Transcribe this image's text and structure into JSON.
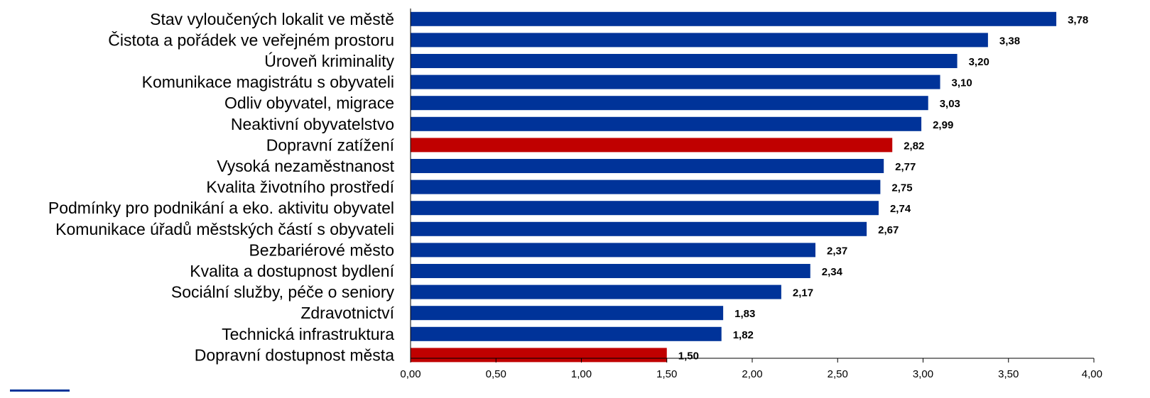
{
  "chart_data": {
    "type": "bar",
    "orientation": "horizontal",
    "title": "",
    "xlabel": "",
    "ylabel": "",
    "xlim": [
      0,
      4
    ],
    "x_ticks": [
      "0,00",
      "0,50",
      "1,00",
      "1,50",
      "2,00",
      "2,50",
      "3,00",
      "3,50",
      "4,00"
    ],
    "grid": false,
    "legend": "none",
    "colors": {
      "default": "#003399",
      "highlight": "#c00000"
    },
    "categories": [
      "Stav vyloučených lokalit ve městě",
      "Čistota a pořádek ve veřejném prostoru",
      "Úroveň kriminality",
      "Komunikace magistrátu s obyvateli",
      "Odliv obyvatel, migrace",
      "Neaktivní obyvatelstvo",
      "Dopravní zatížení",
      "Vysoká nezaměstnanost",
      "Kvalita životního prostředí",
      "Podmínky pro podnikání a eko. aktivitu obyvatel",
      "Komunikace úřadů městských částí s obyvateli",
      "Bezbariérové město",
      "Kvalita a dostupnost bydlení",
      "Sociální služby, péče o seniory",
      "Zdravotnictví",
      "Technická infrastruktura",
      "Dopravní dostupnost města"
    ],
    "values": [
      3.78,
      3.38,
      3.2,
      3.1,
      3.03,
      2.99,
      2.82,
      2.77,
      2.75,
      2.74,
      2.67,
      2.37,
      2.34,
      2.17,
      1.83,
      1.82,
      1.5
    ],
    "value_labels": [
      "3,78",
      "3,38",
      "3,20",
      "3,10",
      "3,03",
      "2,99",
      "2,82",
      "2,77",
      "2,75",
      "2,74",
      "2,67",
      "2,37",
      "2,34",
      "2,17",
      "1,83",
      "1,82",
      "1,50"
    ],
    "highlighted": [
      false,
      false,
      false,
      false,
      false,
      false,
      true,
      false,
      false,
      false,
      false,
      false,
      false,
      false,
      false,
      false,
      true
    ]
  }
}
